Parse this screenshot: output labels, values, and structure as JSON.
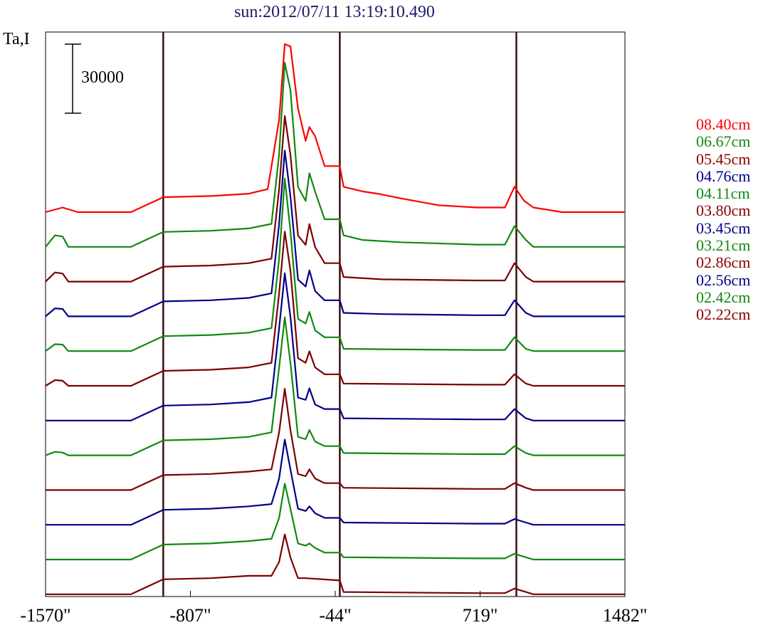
{
  "chart_data": {
    "type": "line",
    "title": "sun:2012/07/11 13:19:10.490",
    "ylabel": "Ta,I",
    "scale_bar_label": "30000",
    "scale_bar_value": 30000,
    "x_ticks": [
      {
        "value": -1570,
        "label": "-1570\""
      },
      {
        "value": -807,
        "label": "-807\""
      },
      {
        "value": -44,
        "label": "-44\""
      },
      {
        "value": 719,
        "label": "719\""
      },
      {
        "value": 1482,
        "label": "1482\""
      }
    ],
    "xlim": [
      -1570,
      1482
    ],
    "vertical_lines": [
      -950,
      -20,
      910
    ],
    "grid": false,
    "legend_position": "right",
    "series": [
      {
        "name": "08.40cm",
        "color": "#ff0000",
        "baseline": 0,
        "points": [
          [
            -1570,
            0
          ],
          [
            -1480,
            2000
          ],
          [
            -1400,
            0
          ],
          [
            -1120,
            0
          ],
          [
            -950,
            6500
          ],
          [
            -700,
            7000
          ],
          [
            -500,
            8000
          ],
          [
            -400,
            10000
          ],
          [
            -340,
            40000
          ],
          [
            -310,
            73000
          ],
          [
            -280,
            72000
          ],
          [
            -240,
            45000
          ],
          [
            -200,
            31000
          ],
          [
            -180,
            37000
          ],
          [
            -150,
            33000
          ],
          [
            -100,
            20000
          ],
          [
            -20,
            20000
          ],
          [
            0,
            11000
          ],
          [
            100,
            9000
          ],
          [
            180,
            8000
          ],
          [
            300,
            6000
          ],
          [
            500,
            3000
          ],
          [
            700,
            2000
          ],
          [
            850,
            2000
          ],
          [
            900,
            11000
          ],
          [
            950,
            5000
          ],
          [
            1000,
            2000
          ],
          [
            1150,
            0
          ],
          [
            1482,
            0
          ]
        ]
      },
      {
        "name": "06.67cm",
        "color": "#118811",
        "baseline": 0,
        "points": [
          [
            -1570,
            0
          ],
          [
            -1520,
            5000
          ],
          [
            -1480,
            4500
          ],
          [
            -1450,
            0
          ],
          [
            -1120,
            0
          ],
          [
            -950,
            6500
          ],
          [
            -700,
            7000
          ],
          [
            -500,
            8000
          ],
          [
            -380,
            10000
          ],
          [
            -340,
            40000
          ],
          [
            -310,
            80000
          ],
          [
            -280,
            68000
          ],
          [
            -240,
            26000
          ],
          [
            -200,
            20000
          ],
          [
            -180,
            32000
          ],
          [
            -150,
            24000
          ],
          [
            -100,
            12000
          ],
          [
            -20,
            12000
          ],
          [
            0,
            5000
          ],
          [
            100,
            3000
          ],
          [
            300,
            2000
          ],
          [
            700,
            1000
          ],
          [
            850,
            1000
          ],
          [
            900,
            9000
          ],
          [
            960,
            3000
          ],
          [
            1000,
            0
          ],
          [
            1482,
            0
          ]
        ]
      },
      {
        "name": "05.45cm",
        "color": "#7a0000",
        "baseline": 0,
        "points": [
          [
            -1570,
            0
          ],
          [
            -1520,
            4000
          ],
          [
            -1480,
            3500
          ],
          [
            -1450,
            0
          ],
          [
            -1120,
            0
          ],
          [
            -950,
            6500
          ],
          [
            -700,
            7000
          ],
          [
            -500,
            8000
          ],
          [
            -380,
            10000
          ],
          [
            -340,
            40000
          ],
          [
            -310,
            72000
          ],
          [
            -280,
            55000
          ],
          [
            -240,
            20000
          ],
          [
            -200,
            16000
          ],
          [
            -180,
            25000
          ],
          [
            -150,
            15000
          ],
          [
            -100,
            8000
          ],
          [
            -20,
            8000
          ],
          [
            0,
            2000
          ],
          [
            200,
            1000
          ],
          [
            700,
            500
          ],
          [
            850,
            500
          ],
          [
            900,
            8000
          ],
          [
            960,
            2000
          ],
          [
            1000,
            0
          ],
          [
            1482,
            0
          ]
        ]
      },
      {
        "name": "04.76cm",
        "color": "#000088",
        "baseline": 0,
        "points": [
          [
            -1570,
            0
          ],
          [
            -1520,
            3500
          ],
          [
            -1480,
            3200
          ],
          [
            -1450,
            0
          ],
          [
            -1120,
            0
          ],
          [
            -950,
            6500
          ],
          [
            -700,
            7000
          ],
          [
            -500,
            8000
          ],
          [
            -380,
            10000
          ],
          [
            -340,
            40000
          ],
          [
            -310,
            72000
          ],
          [
            -280,
            52000
          ],
          [
            -240,
            16000
          ],
          [
            -200,
            13000
          ],
          [
            -180,
            20000
          ],
          [
            -150,
            11000
          ],
          [
            -100,
            7000
          ],
          [
            -20,
            7000
          ],
          [
            0,
            1500
          ],
          [
            200,
            1000
          ],
          [
            700,
            500
          ],
          [
            850,
            500
          ],
          [
            900,
            7000
          ],
          [
            960,
            1500
          ],
          [
            1000,
            0
          ],
          [
            1482,
            0
          ]
        ]
      },
      {
        "name": "04.11cm",
        "color": "#118811",
        "baseline": 0,
        "points": [
          [
            -1570,
            0
          ],
          [
            -1520,
            3000
          ],
          [
            -1480,
            2800
          ],
          [
            -1450,
            0
          ],
          [
            -1120,
            0
          ],
          [
            -950,
            6500
          ],
          [
            -700,
            7000
          ],
          [
            -500,
            8000
          ],
          [
            -380,
            10000
          ],
          [
            -340,
            40000
          ],
          [
            -310,
            75000
          ],
          [
            -280,
            52000
          ],
          [
            -240,
            14000
          ],
          [
            -200,
            12000
          ],
          [
            -180,
            17000
          ],
          [
            -150,
            9000
          ],
          [
            -100,
            6000
          ],
          [
            -20,
            6000
          ],
          [
            0,
            1000
          ],
          [
            200,
            800
          ],
          [
            700,
            500
          ],
          [
            850,
            500
          ],
          [
            900,
            6000
          ],
          [
            960,
            1000
          ],
          [
            1000,
            0
          ],
          [
            1482,
            0
          ]
        ]
      },
      {
        "name": "03.80cm",
        "color": "#7a0000",
        "baseline": 0,
        "points": [
          [
            -1570,
            0
          ],
          [
            -1520,
            2500
          ],
          [
            -1480,
            2200
          ],
          [
            -1450,
            0
          ],
          [
            -1120,
            0
          ],
          [
            -950,
            6500
          ],
          [
            -700,
            7000
          ],
          [
            -500,
            8000
          ],
          [
            -380,
            10000
          ],
          [
            -340,
            40000
          ],
          [
            -310,
            67000
          ],
          [
            -280,
            50000
          ],
          [
            -240,
            12000
          ],
          [
            -200,
            10000
          ],
          [
            -180,
            15000
          ],
          [
            -150,
            8000
          ],
          [
            -100,
            5000
          ],
          [
            -20,
            5000
          ],
          [
            0,
            1000
          ],
          [
            700,
            500
          ],
          [
            850,
            500
          ],
          [
            900,
            5000
          ],
          [
            960,
            1000
          ],
          [
            1000,
            0
          ],
          [
            1482,
            0
          ]
        ]
      },
      {
        "name": "03.45cm",
        "color": "#000088",
        "baseline": 0,
        "points": [
          [
            -1570,
            0
          ],
          [
            -1120,
            0
          ],
          [
            -950,
            6500
          ],
          [
            -700,
            7000
          ],
          [
            -500,
            8000
          ],
          [
            -380,
            10000
          ],
          [
            -340,
            40000
          ],
          [
            -310,
            64000
          ],
          [
            -280,
            45000
          ],
          [
            -240,
            10000
          ],
          [
            -200,
            9000
          ],
          [
            -180,
            14000
          ],
          [
            -150,
            7000
          ],
          [
            -100,
            5000
          ],
          [
            -20,
            5000
          ],
          [
            0,
            1000
          ],
          [
            700,
            500
          ],
          [
            850,
            500
          ],
          [
            900,
            5000
          ],
          [
            960,
            1000
          ],
          [
            1000,
            0
          ],
          [
            1482,
            0
          ]
        ]
      },
      {
        "name": "03.21cm",
        "color": "#118811",
        "baseline": 0,
        "points": [
          [
            -1570,
            0
          ],
          [
            -1520,
            1500
          ],
          [
            -1480,
            1200
          ],
          [
            -1450,
            0
          ],
          [
            -1120,
            0
          ],
          [
            -950,
            6500
          ],
          [
            -700,
            7000
          ],
          [
            -500,
            8000
          ],
          [
            -380,
            10000
          ],
          [
            -340,
            38000
          ],
          [
            -310,
            60000
          ],
          [
            -280,
            40000
          ],
          [
            -240,
            8000
          ],
          [
            -200,
            7000
          ],
          [
            -180,
            11000
          ],
          [
            -150,
            6000
          ],
          [
            -100,
            4000
          ],
          [
            -20,
            4000
          ],
          [
            0,
            1000
          ],
          [
            700,
            500
          ],
          [
            850,
            500
          ],
          [
            900,
            4000
          ],
          [
            960,
            1000
          ],
          [
            1000,
            0
          ],
          [
            1482,
            0
          ]
        ]
      },
      {
        "name": "02.86cm",
        "color": "#7a0000",
        "baseline": 0,
        "points": [
          [
            -1570,
            0
          ],
          [
            -1120,
            0
          ],
          [
            -950,
            6500
          ],
          [
            -700,
            7000
          ],
          [
            -500,
            8000
          ],
          [
            -380,
            9000
          ],
          [
            -340,
            25000
          ],
          [
            -310,
            44000
          ],
          [
            -280,
            26000
          ],
          [
            -240,
            7000
          ],
          [
            -200,
            6000
          ],
          [
            -180,
            9000
          ],
          [
            -150,
            5000
          ],
          [
            -100,
            3000
          ],
          [
            -20,
            3000
          ],
          [
            0,
            1000
          ],
          [
            700,
            500
          ],
          [
            850,
            500
          ],
          [
            900,
            3000
          ],
          [
            960,
            1000
          ],
          [
            1000,
            0
          ],
          [
            1482,
            0
          ]
        ]
      },
      {
        "name": "02.56cm",
        "color": "#000088",
        "baseline": 0,
        "points": [
          [
            -1570,
            0
          ],
          [
            -1120,
            0
          ],
          [
            -950,
            6500
          ],
          [
            -700,
            7000
          ],
          [
            -500,
            8000
          ],
          [
            -380,
            9000
          ],
          [
            -340,
            20000
          ],
          [
            -310,
            37000
          ],
          [
            -280,
            24000
          ],
          [
            -240,
            7000
          ],
          [
            -200,
            6000
          ],
          [
            -180,
            8000
          ],
          [
            -150,
            5000
          ],
          [
            -100,
            3000
          ],
          [
            -20,
            3000
          ],
          [
            0,
            1000
          ],
          [
            700,
            500
          ],
          [
            850,
            500
          ],
          [
            900,
            2500
          ],
          [
            960,
            1000
          ],
          [
            1000,
            0
          ],
          [
            1482,
            0
          ]
        ]
      },
      {
        "name": "02.42cm",
        "color": "#118811",
        "baseline": 0,
        "points": [
          [
            -1570,
            0
          ],
          [
            -1120,
            0
          ],
          [
            -950,
            6500
          ],
          [
            -700,
            7000
          ],
          [
            -500,
            8000
          ],
          [
            -380,
            9000
          ],
          [
            -340,
            18000
          ],
          [
            -310,
            33000
          ],
          [
            -280,
            22000
          ],
          [
            -240,
            7000
          ],
          [
            -200,
            6000
          ],
          [
            -180,
            7000
          ],
          [
            -150,
            5000
          ],
          [
            -100,
            3000
          ],
          [
            -20,
            3000
          ],
          [
            0,
            1000
          ],
          [
            700,
            500
          ],
          [
            850,
            500
          ],
          [
            900,
            2500
          ],
          [
            960,
            1000
          ],
          [
            1000,
            0
          ],
          [
            1482,
            0
          ]
        ]
      },
      {
        "name": "02.22cm",
        "color": "#7a0000",
        "baseline": 0,
        "points": [
          [
            -1570,
            0
          ],
          [
            -1120,
            0
          ],
          [
            -950,
            6500
          ],
          [
            -700,
            7000
          ],
          [
            -500,
            8000
          ],
          [
            -380,
            8000
          ],
          [
            -340,
            14000
          ],
          [
            -310,
            26000
          ],
          [
            -280,
            16000
          ],
          [
            -240,
            7000
          ],
          [
            -200,
            7000
          ],
          [
            -20,
            6000
          ],
          [
            0,
            1000
          ],
          [
            700,
            500
          ],
          [
            850,
            500
          ],
          [
            900,
            2500
          ],
          [
            960,
            1000
          ],
          [
            1000,
            0
          ],
          [
            1482,
            0
          ]
        ]
      }
    ]
  }
}
